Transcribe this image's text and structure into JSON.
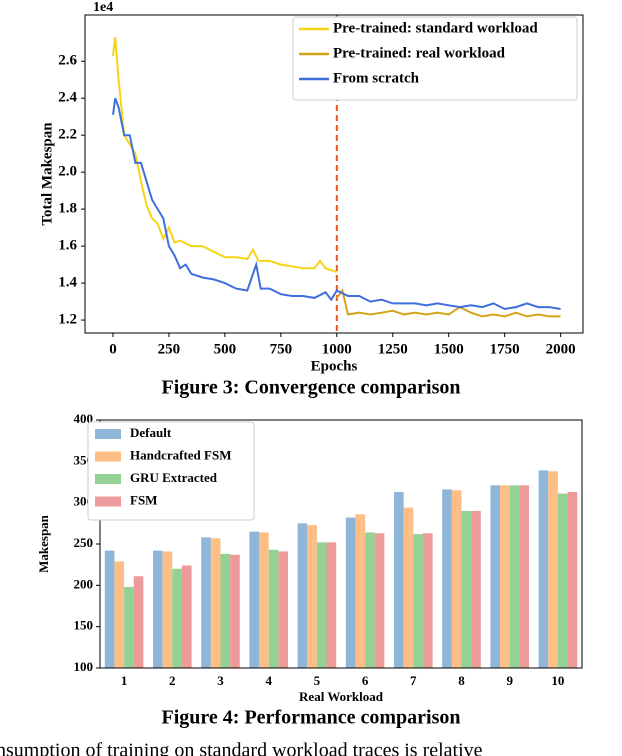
{
  "chart_data": [
    {
      "type": "line",
      "xlabel": "Epochs",
      "ylabel": "Total Makespan",
      "y_offset_label": "1e4",
      "xlim": [
        -125,
        2100
      ],
      "xticks": [
        0,
        250,
        500,
        750,
        1000,
        1250,
        1500,
        1750,
        2000
      ],
      "ylim": [
        1.13,
        2.85
      ],
      "yticks": [
        1.2,
        1.4,
        1.6,
        1.8,
        {
          "value": 2,
          "label": "2.0"
        },
        2.2,
        2.4,
        2.6
      ],
      "legend": "upper right",
      "vline": {
        "x": 1000,
        "color": "#e8531f"
      },
      "series": [
        {
          "name": "Pre-trained: standard workload",
          "color": "#f7d417",
          "x": [
            0,
            10,
            25,
            50,
            75,
            100,
            125,
            150,
            175,
            200,
            225,
            250,
            275,
            300,
            350,
            400,
            450,
            500,
            550,
            600,
            625,
            650,
            700,
            750,
            800,
            850,
            900,
            925,
            950,
            1000
          ],
          "values": [
            2.63,
            2.73,
            2.5,
            2.2,
            2.15,
            2.1,
            1.95,
            1.82,
            1.75,
            1.72,
            1.64,
            1.7,
            1.62,
            1.63,
            1.6,
            1.6,
            1.57,
            1.54,
            1.54,
            1.53,
            1.58,
            1.52,
            1.52,
            1.5,
            1.49,
            1.48,
            1.48,
            1.52,
            1.48,
            1.46
          ]
        },
        {
          "name": "Pre-trained: real workload",
          "color": "#d4a418",
          "x": [
            1000,
            1025,
            1050,
            1100,
            1150,
            1200,
            1250,
            1300,
            1350,
            1400,
            1450,
            1500,
            1550,
            1600,
            1650,
            1700,
            1750,
            1800,
            1850,
            1900,
            1950,
            2000
          ],
          "values": [
            1.32,
            1.36,
            1.23,
            1.24,
            1.23,
            1.24,
            1.25,
            1.23,
            1.24,
            1.23,
            1.24,
            1.23,
            1.27,
            1.24,
            1.22,
            1.23,
            1.22,
            1.24,
            1.22,
            1.23,
            1.22,
            1.22
          ]
        },
        {
          "name": "From scratch",
          "color": "#3f6fdc",
          "x": [
            0,
            10,
            25,
            50,
            75,
            100,
            125,
            150,
            175,
            200,
            225,
            250,
            275,
            300,
            325,
            350,
            400,
            450,
            500,
            550,
            600,
            640,
            660,
            700,
            750,
            800,
            850,
            900,
            950,
            975,
            1000,
            1050,
            1100,
            1150,
            1200,
            1250,
            1300,
            1350,
            1400,
            1450,
            1500,
            1550,
            1600,
            1650,
            1700,
            1750,
            1800,
            1850,
            1900,
            1950,
            2000
          ],
          "values": [
            2.31,
            2.4,
            2.35,
            2.2,
            2.2,
            2.05,
            2.05,
            1.95,
            1.85,
            1.8,
            1.75,
            1.6,
            1.55,
            1.48,
            1.5,
            1.45,
            1.43,
            1.42,
            1.4,
            1.37,
            1.36,
            1.5,
            1.37,
            1.37,
            1.34,
            1.33,
            1.33,
            1.32,
            1.35,
            1.31,
            1.36,
            1.33,
            1.33,
            1.3,
            1.31,
            1.29,
            1.29,
            1.29,
            1.28,
            1.29,
            1.28,
            1.27,
            1.28,
            1.27,
            1.29,
            1.26,
            1.27,
            1.29,
            1.27,
            1.27,
            1.26
          ]
        }
      ]
    },
    {
      "type": "grouped_bar",
      "xlabel": "Real Workload",
      "ylabel": "Makespan",
      "categories": [
        "1",
        "2",
        "3",
        "4",
        "5",
        "6",
        "7",
        "8",
        "9",
        "10"
      ],
      "ylim": [
        100,
        400
      ],
      "yticks": [
        100,
        150,
        200,
        250,
        300,
        350,
        400
      ],
      "legend": "upper left",
      "series": [
        {
          "name": "Default",
          "color": "#8fb5d9",
          "values": [
            242,
            242,
            258,
            265,
            275,
            282,
            313,
            316,
            321,
            339
          ]
        },
        {
          "name": "Handcrafted FSM",
          "color": "#fdbf85",
          "values": [
            229,
            241,
            257,
            264,
            273,
            286,
            294,
            315,
            321,
            338
          ]
        },
        {
          "name": "GRU Extracted",
          "color": "#94d195",
          "values": [
            198,
            220,
            238,
            243,
            252,
            264,
            262,
            290,
            321,
            311
          ]
        },
        {
          "name": "FSM",
          "color": "#ec9a9a",
          "values": [
            211,
            224,
            237,
            241,
            252,
            263,
            263,
            290,
            321,
            313
          ]
        }
      ]
    }
  ],
  "captions": [
    "Figure 3: Convergence comparison",
    "Figure 4: Performance comparison"
  ],
  "body_text": "nsumption of training on standard workload traces is relative"
}
